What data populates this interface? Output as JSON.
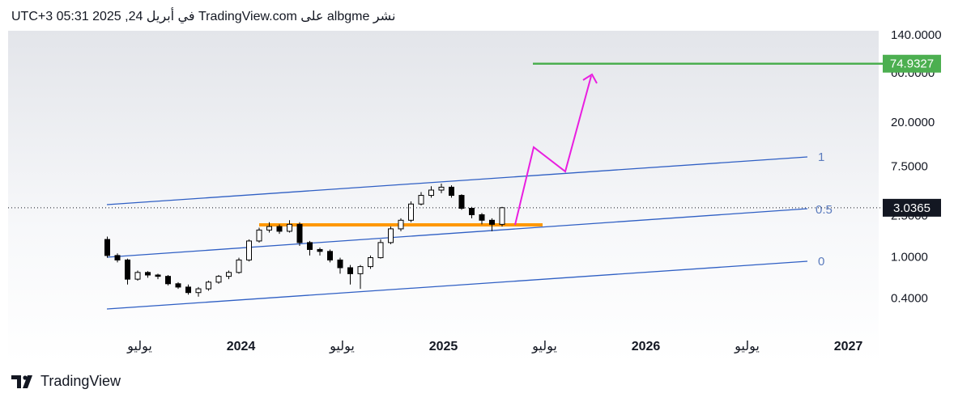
{
  "header": {
    "text": "نشر albgme على TradingView.com في أبريل 24, 2025 05:31 UTC+3"
  },
  "footer": {
    "brand": "TradingView"
  },
  "chart_data": {
    "type": "candlestick",
    "x": [
      2023.34,
      2023.39,
      2023.44,
      2023.49,
      2023.54,
      2023.59,
      2023.64,
      2023.69,
      2023.74,
      2023.79,
      2023.84,
      2023.89,
      2023.94,
      2023.99,
      2024.04,
      2024.09,
      2024.14,
      2024.19,
      2024.24,
      2024.29,
      2024.34,
      2024.39,
      2024.44,
      2024.49,
      2024.54,
      2024.59,
      2024.64,
      2024.69,
      2024.74,
      2024.79,
      2024.84,
      2024.89,
      2024.94,
      2024.99,
      2025.04,
      2025.09,
      2025.14,
      2025.19,
      2025.24,
      2025.29
    ],
    "open": [
      1.5,
      1.05,
      0.95,
      0.62,
      0.72,
      0.68,
      0.66,
      0.56,
      0.52,
      0.46,
      0.5,
      0.58,
      0.66,
      0.72,
      0.95,
      1.45,
      1.85,
      2.0,
      1.8,
      2.1,
      1.4,
      1.2,
      1.15,
      0.95,
      0.8,
      0.7,
      0.82,
      1.0,
      1.4,
      1.9,
      2.3,
      3.3,
      4.0,
      4.5,
      4.8,
      4.0,
      3.0,
      2.6,
      2.3,
      2.1
    ],
    "high": [
      1.6,
      1.1,
      0.98,
      0.75,
      0.74,
      0.7,
      0.68,
      0.58,
      0.55,
      0.52,
      0.6,
      0.68,
      0.75,
      1.0,
      1.5,
      1.95,
      2.2,
      2.1,
      2.3,
      2.2,
      1.45,
      1.25,
      1.2,
      1.0,
      0.85,
      0.85,
      1.05,
      1.5,
      2.0,
      2.4,
      3.5,
      4.3,
      4.9,
      5.2,
      5.0,
      4.1,
      3.1,
      2.7,
      2.4,
      3.1
    ],
    "low": [
      1.0,
      0.9,
      0.55,
      0.6,
      0.64,
      0.62,
      0.54,
      0.5,
      0.44,
      0.42,
      0.48,
      0.56,
      0.62,
      0.7,
      0.92,
      1.4,
      1.75,
      1.7,
      1.75,
      1.3,
      1.05,
      1.05,
      0.9,
      0.7,
      0.55,
      0.5,
      0.78,
      0.98,
      1.35,
      1.8,
      2.2,
      3.2,
      3.8,
      4.2,
      3.8,
      2.9,
      2.4,
      2.1,
      1.8,
      2.0
    ],
    "close": [
      1.05,
      0.95,
      0.62,
      0.72,
      0.68,
      0.66,
      0.56,
      0.52,
      0.46,
      0.5,
      0.58,
      0.66,
      0.72,
      0.95,
      1.45,
      1.85,
      2.0,
      1.8,
      2.1,
      1.4,
      1.2,
      1.15,
      0.95,
      0.8,
      0.7,
      0.82,
      1.0,
      1.4,
      1.9,
      2.3,
      3.3,
      4.0,
      4.5,
      4.8,
      4.0,
      3.0,
      2.6,
      2.3,
      2.1,
      3.04
    ],
    "up_color": "#ffffff",
    "down_color": "#000000",
    "wick_color": "#000000",
    "xlim": [
      2022.85,
      2027.15
    ],
    "xticks": [
      {
        "value": 2023.5,
        "label": "يوليو"
      },
      2024,
      {
        "value": 2024.5,
        "label": "يوليو"
      },
      2025,
      {
        "value": 2025.5,
        "label": "يوليو"
      },
      2026,
      {
        "value": 2026.5,
        "label": "يوليو"
      },
      2027
    ],
    "ylim": [
      0.2,
      156
    ],
    "log_scale": true,
    "yticks": [
      {
        "value": 140,
        "label": "140.0000"
      },
      {
        "value": 60,
        "label": "60.0000"
      },
      {
        "value": 20,
        "label": "20.0000"
      },
      {
        "value": 7.5,
        "label": "7.5000"
      },
      {
        "value": 2.5,
        "label": "2.5000"
      },
      {
        "value": 1,
        "label": "1.0000"
      },
      {
        "value": 0.4,
        "label": "0.4000"
      }
    ],
    "last_price": 3.0365,
    "target_price": 74.9327,
    "target_color": "#4caf50",
    "channel_levels": [
      1,
      0.5,
      0
    ]
  }
}
